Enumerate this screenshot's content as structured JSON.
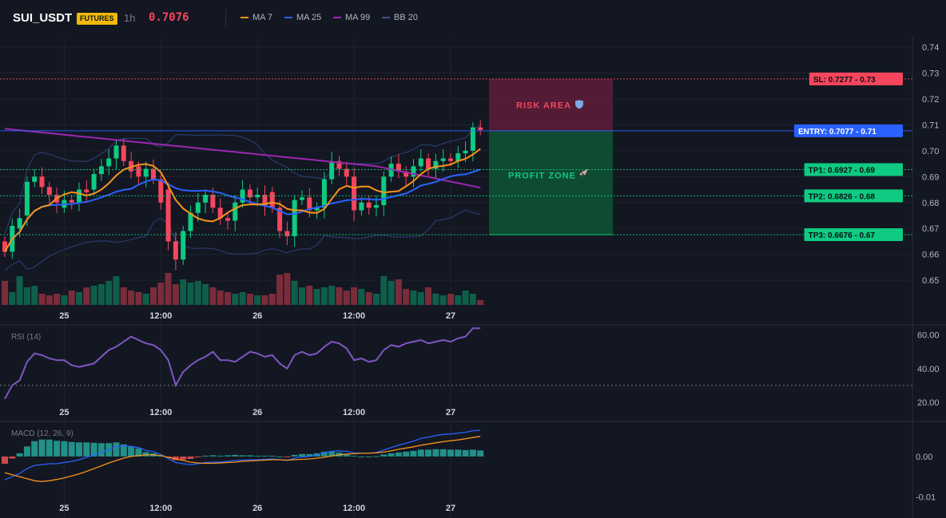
{
  "header": {
    "symbol": "SUI_USDT",
    "badge": "FUTURES",
    "timeframe": "1h",
    "price": "0.7076",
    "legend": [
      {
        "label": "MA 7",
        "color": "#f7931a"
      },
      {
        "label": "MA 25",
        "color": "#2962ff"
      },
      {
        "label": "MA 99",
        "color": "#9c27b0"
      },
      {
        "label": "BB 20",
        "color": "#3d4f8a"
      }
    ]
  },
  "colors": {
    "up": "#0ecb81",
    "down": "#f6465d",
    "entry": "#2962ff",
    "sl": "#f6465d",
    "tp": "#0ecb81",
    "rsi": "#7e57c2",
    "macd": "#2962ff",
    "signal": "#f7931a"
  },
  "zones": {
    "risk_label": "RISK AREA",
    "profit_label": "PROFIT ZONE"
  },
  "levels": [
    {
      "label": "SL: 0.7277 - 0.73",
      "price": 0.7277,
      "kind": "sl"
    },
    {
      "label": "ENTRY: 0.7077 - 0.71",
      "price": 0.7077,
      "kind": "entry"
    },
    {
      "label": "TP1: 0.6927 - 0.69",
      "price": 0.6927,
      "kind": "tp"
    },
    {
      "label": "TP2: 0.6826 - 0.68",
      "price": 0.6826,
      "kind": "tp"
    },
    {
      "label": "TP3: 0.6676 - 0.67",
      "price": 0.6676,
      "kind": "tp"
    }
  ],
  "chart_data": [
    {
      "type": "candlestick",
      "title": "SUI_USDT 1h",
      "x_ticks": [
        "25",
        "12:00",
        "26",
        "12:00",
        "27"
      ],
      "y_ticks": [
        "0.74",
        "0.73",
        "0.72",
        "0.71",
        "0.70",
        "0.69",
        "0.68",
        "0.67",
        "0.66",
        "0.65"
      ],
      "ylim": [
        0.6405,
        0.744
      ],
      "closes": [
        0.661,
        0.671,
        0.674,
        0.688,
        0.69,
        0.686,
        0.683,
        0.68,
        0.681,
        0.68,
        0.685,
        0.684,
        0.691,
        0.694,
        0.697,
        0.702,
        0.696,
        0.692,
        0.69,
        0.693,
        0.689,
        0.68,
        0.665,
        0.658,
        0.669,
        0.676,
        0.68,
        0.683,
        0.678,
        0.674,
        0.673,
        0.68,
        0.685,
        0.682,
        0.683,
        0.679,
        0.678,
        0.669,
        0.667,
        0.681,
        0.682,
        0.677,
        0.678,
        0.689,
        0.696,
        0.693,
        0.69,
        0.677,
        0.68,
        0.678,
        0.679,
        0.69,
        0.695,
        0.692,
        0.69,
        0.694,
        0.697,
        0.693,
        0.696,
        0.697,
        0.696,
        0.699,
        0.7,
        0.709,
        0.708
      ],
      "opens": [
        0.665,
        0.661,
        0.67,
        0.675,
        0.688,
        0.69,
        0.686,
        0.683,
        0.678,
        0.681,
        0.68,
        0.685,
        0.685,
        0.691,
        0.694,
        0.697,
        0.702,
        0.696,
        0.694,
        0.69,
        0.693,
        0.689,
        0.685,
        0.665,
        0.658,
        0.669,
        0.676,
        0.68,
        0.683,
        0.678,
        0.674,
        0.673,
        0.68,
        0.685,
        0.682,
        0.683,
        0.684,
        0.678,
        0.669,
        0.667,
        0.681,
        0.682,
        0.677,
        0.678,
        0.689,
        0.696,
        0.693,
        0.69,
        0.677,
        0.68,
        0.678,
        0.679,
        0.69,
        0.695,
        0.692,
        0.69,
        0.694,
        0.697,
        0.693,
        0.696,
        0.697,
        0.696,
        0.699,
        0.7,
        0.709
      ],
      "volume_bars": [
        0.75,
        0.4,
        0.9,
        0.55,
        0.6,
        0.35,
        0.3,
        0.35,
        0.3,
        0.45,
        0.4,
        0.55,
        0.6,
        0.65,
        0.75,
        0.9,
        0.55,
        0.45,
        0.4,
        0.35,
        0.55,
        0.7,
        1.0,
        0.65,
        0.8,
        0.7,
        0.75,
        0.65,
        0.55,
        0.45,
        0.4,
        0.35,
        0.4,
        0.35,
        0.3,
        0.3,
        0.35,
        0.95,
        1.0,
        0.75,
        0.55,
        0.6,
        0.5,
        0.55,
        0.6,
        0.55,
        0.45,
        0.55,
        0.5,
        0.4,
        0.35,
        0.9,
        0.75,
        0.8,
        0.5,
        0.45,
        0.4,
        0.55,
        0.35,
        0.3,
        0.35,
        0.3,
        0.45,
        0.35,
        0.15
      ]
    },
    {
      "type": "line",
      "title": "RSI (14)",
      "x_ticks": [
        "25",
        "12:00",
        "26",
        "12:00",
        "27"
      ],
      "y_ticks": [
        "60.00",
        "40.00",
        "20.00"
      ],
      "ylim": [
        19,
        66
      ],
      "series": [
        {
          "values": [
            22,
            30,
            33,
            44,
            49,
            48,
            46,
            45,
            45,
            42,
            41,
            42,
            43,
            47,
            51,
            53,
            56,
            59,
            57,
            55,
            54,
            51,
            45,
            30,
            38,
            42,
            45,
            47,
            50,
            45,
            45,
            44,
            47,
            50,
            49,
            47,
            48,
            43,
            40,
            48,
            50,
            48,
            49,
            53,
            56,
            55,
            52,
            45,
            46,
            44,
            45,
            51,
            54,
            53,
            55,
            56,
            57,
            55,
            56,
            57,
            56,
            58,
            59,
            64,
            64
          ]
        }
      ]
    },
    {
      "type": "line",
      "title": "MACD (12, 26, 9)",
      "x_ticks": [
        "25",
        "12:00",
        "26",
        "12:00",
        "27"
      ],
      "y_ticks": [
        "0.00",
        "-0.01"
      ],
      "ylim": [
        -0.0105,
        0.0085
      ],
      "series": [
        {
          "values": [
            -0.0058,
            -0.005,
            -0.0042,
            -0.003,
            -0.0022,
            -0.002,
            -0.0018,
            -0.0018,
            -0.0015,
            -0.0012,
            -0.0008,
            -0.0002,
            0.0004,
            0.001,
            0.0017,
            0.0025,
            0.0026,
            0.0025,
            0.0022,
            0.0015,
            0.0012,
            0.0005,
            -0.0005,
            -0.0015,
            -0.0018,
            -0.002,
            -0.0018,
            -0.0015,
            -0.0014,
            -0.0014,
            -0.0012,
            -0.001,
            -0.0009,
            -0.0008,
            -0.0008,
            -0.0007,
            -0.0006,
            -0.0008,
            -0.001,
            -0.0004,
            -0.0001,
            0.0,
            0.0004,
            0.001,
            0.0013,
            0.0014,
            0.0013,
            0.0009,
            0.0008,
            0.0008,
            0.001,
            0.0016,
            0.0022,
            0.0028,
            0.0033,
            0.0038,
            0.0045,
            0.0048,
            0.0052,
            0.0055,
            0.0056,
            0.0058,
            0.006,
            0.0064,
            0.0065
          ]
        },
        {
          "values": [
            -0.004,
            -0.0045,
            -0.005,
            -0.0055,
            -0.006,
            -0.0062,
            -0.006,
            -0.0057,
            -0.0053,
            -0.0048,
            -0.0043,
            -0.0037,
            -0.003,
            -0.0023,
            -0.0016,
            -0.001,
            -0.0004,
            0.0,
            0.0002,
            0.0004,
            0.0004,
            0.0002,
            -0.0002,
            -0.0006,
            -0.001,
            -0.0014,
            -0.0016,
            -0.0017,
            -0.0017,
            -0.0016,
            -0.0015,
            -0.0014,
            -0.0012,
            -0.0011,
            -0.001,
            -0.0009,
            -0.0008,
            -0.0008,
            -0.0009,
            -0.0008,
            -0.0007,
            -0.0006,
            -0.0004,
            -0.0002,
            0.0001,
            0.0004,
            0.0006,
            0.0007,
            0.0008,
            0.0008,
            0.0009,
            0.0011,
            0.0014,
            0.0018,
            0.0021,
            0.0024,
            0.0028,
            0.0031,
            0.0034,
            0.0037,
            0.0039,
            0.0041,
            0.0044,
            0.0047,
            0.005
          ]
        }
      ]
    }
  ]
}
